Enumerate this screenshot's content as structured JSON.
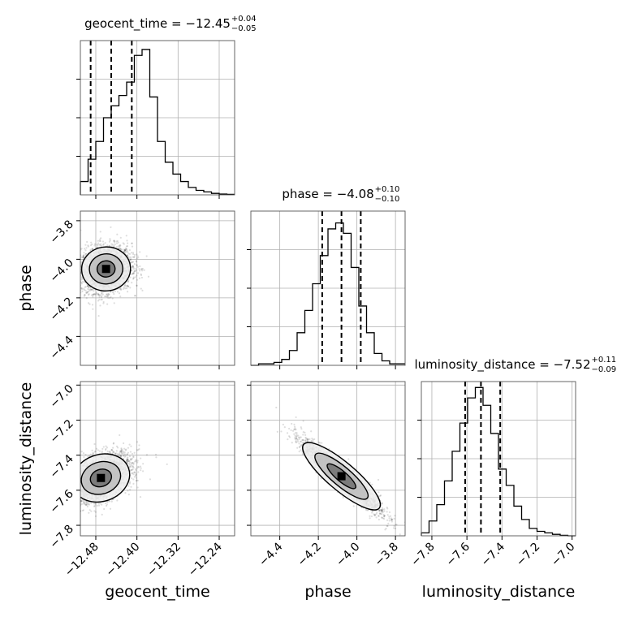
{
  "chart_data": {
    "type": "corner",
    "parameters": [
      {
        "name": "geocent_time",
        "axis_label": "geocent_time",
        "title_prefix": "geocent_time = ",
        "median": "−12.45",
        "plus": "+0.04",
        "minus": "−0.05",
        "range": [
          -12.51,
          -12.21
        ],
        "ticks": [
          -12.48,
          -12.4,
          -12.32,
          -12.24
        ],
        "tick_labels": [
          "−12.48",
          "−12.40",
          "−12.32",
          "−12.24"
        ],
        "quantiles": [
          -12.49,
          -12.45,
          -12.41
        ],
        "hist_edges": [
          -12.51,
          -12.2
        ],
        "hist_values": [
          0.09,
          0.24,
          0.36,
          0.52,
          0.6,
          0.67,
          0.76,
          0.94,
          0.98,
          0.66,
          0.36,
          0.22,
          0.14,
          0.09,
          0.05,
          0.03,
          0.02,
          0.01,
          0.005,
          0.003
        ],
        "hist_ylim": [
          0,
          1.04
        ]
      },
      {
        "name": "phase",
        "axis_label": "phase",
        "title_prefix": "phase = ",
        "median": "−4.08",
        "plus": "+0.10",
        "minus": "−0.10",
        "range": [
          -4.55,
          -3.75
        ],
        "ticks": [
          -4.4,
          -4.2,
          -4.0,
          -3.8
        ],
        "tick_labels": [
          "−4.4",
          "−4.2",
          "−4.0",
          "−3.8"
        ],
        "quantiles": [
          -4.18,
          -4.08,
          -3.98
        ],
        "hist_edges": [
          -4.55,
          -3.75
        ],
        "hist_values": [
          0.0,
          0.01,
          0.01,
          0.02,
          0.04,
          0.1,
          0.22,
          0.37,
          0.55,
          0.74,
          0.92,
          0.96,
          0.89,
          0.66,
          0.4,
          0.22,
          0.08,
          0.03,
          0.01,
          0.01
        ],
        "hist_ylim": [
          0,
          1.04
        ]
      },
      {
        "name": "luminosity_distance",
        "axis_label": "luminosity_distance",
        "title_prefix": "luminosity_distance = ",
        "median": "−7.52",
        "plus": "+0.11",
        "minus": "−0.09",
        "range": [
          -7.86,
          -6.98
        ],
        "ticks": [
          -7.8,
          -7.6,
          -7.4,
          -7.2,
          -7.0
        ],
        "tick_labels": [
          "−7.8",
          "−7.6",
          "−7.4",
          "−7.2",
          "−7.0"
        ],
        "quantiles": [
          -7.61,
          -7.52,
          -7.41
        ],
        "hist_edges": [
          -7.86,
          -6.98
        ],
        "hist_values": [
          0.02,
          0.1,
          0.21,
          0.37,
          0.57,
          0.76,
          0.93,
          1.0,
          0.88,
          0.69,
          0.45,
          0.34,
          0.2,
          0.11,
          0.05,
          0.03,
          0.02,
          0.01,
          0.003,
          0.0
        ],
        "hist_ylim": [
          0,
          1.04
        ]
      }
    ],
    "pairs": [
      {
        "x": "geocent_time",
        "y": "phase",
        "center": [
          -12.46,
          -4.05
        ],
        "spread": [
          0.025,
          0.06
        ],
        "corr": 0.1
      },
      {
        "x": "geocent_time",
        "y": "luminosity_distance",
        "center": [
          -12.47,
          -7.53
        ],
        "spread": [
          0.03,
          0.07
        ],
        "corr": 0.45
      },
      {
        "x": "phase",
        "y": "luminosity_distance",
        "center": [
          -4.08,
          -7.52
        ],
        "spread": [
          0.1,
          0.1
        ],
        "corr": -0.93
      }
    ],
    "grid": true
  }
}
